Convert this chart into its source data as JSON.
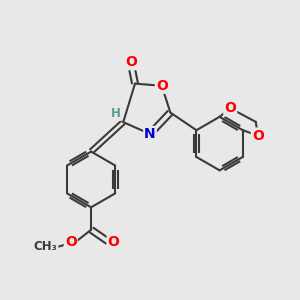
{
  "bg_color": "#e8e8e8",
  "bond_color": "#3a3a3a",
  "bond_width": 1.5,
  "atom_colors": {
    "O": "#ff0000",
    "N": "#0000cc",
    "C": "#3a3a3a",
    "H": "#5a9a9a"
  },
  "font_size_atom": 10,
  "font_size_small": 8.5,
  "fig_width": 3.0,
  "fig_height": 3.0,
  "xlim": [
    -0.5,
    5.0
  ],
  "ylim": [
    -2.8,
    2.2
  ]
}
